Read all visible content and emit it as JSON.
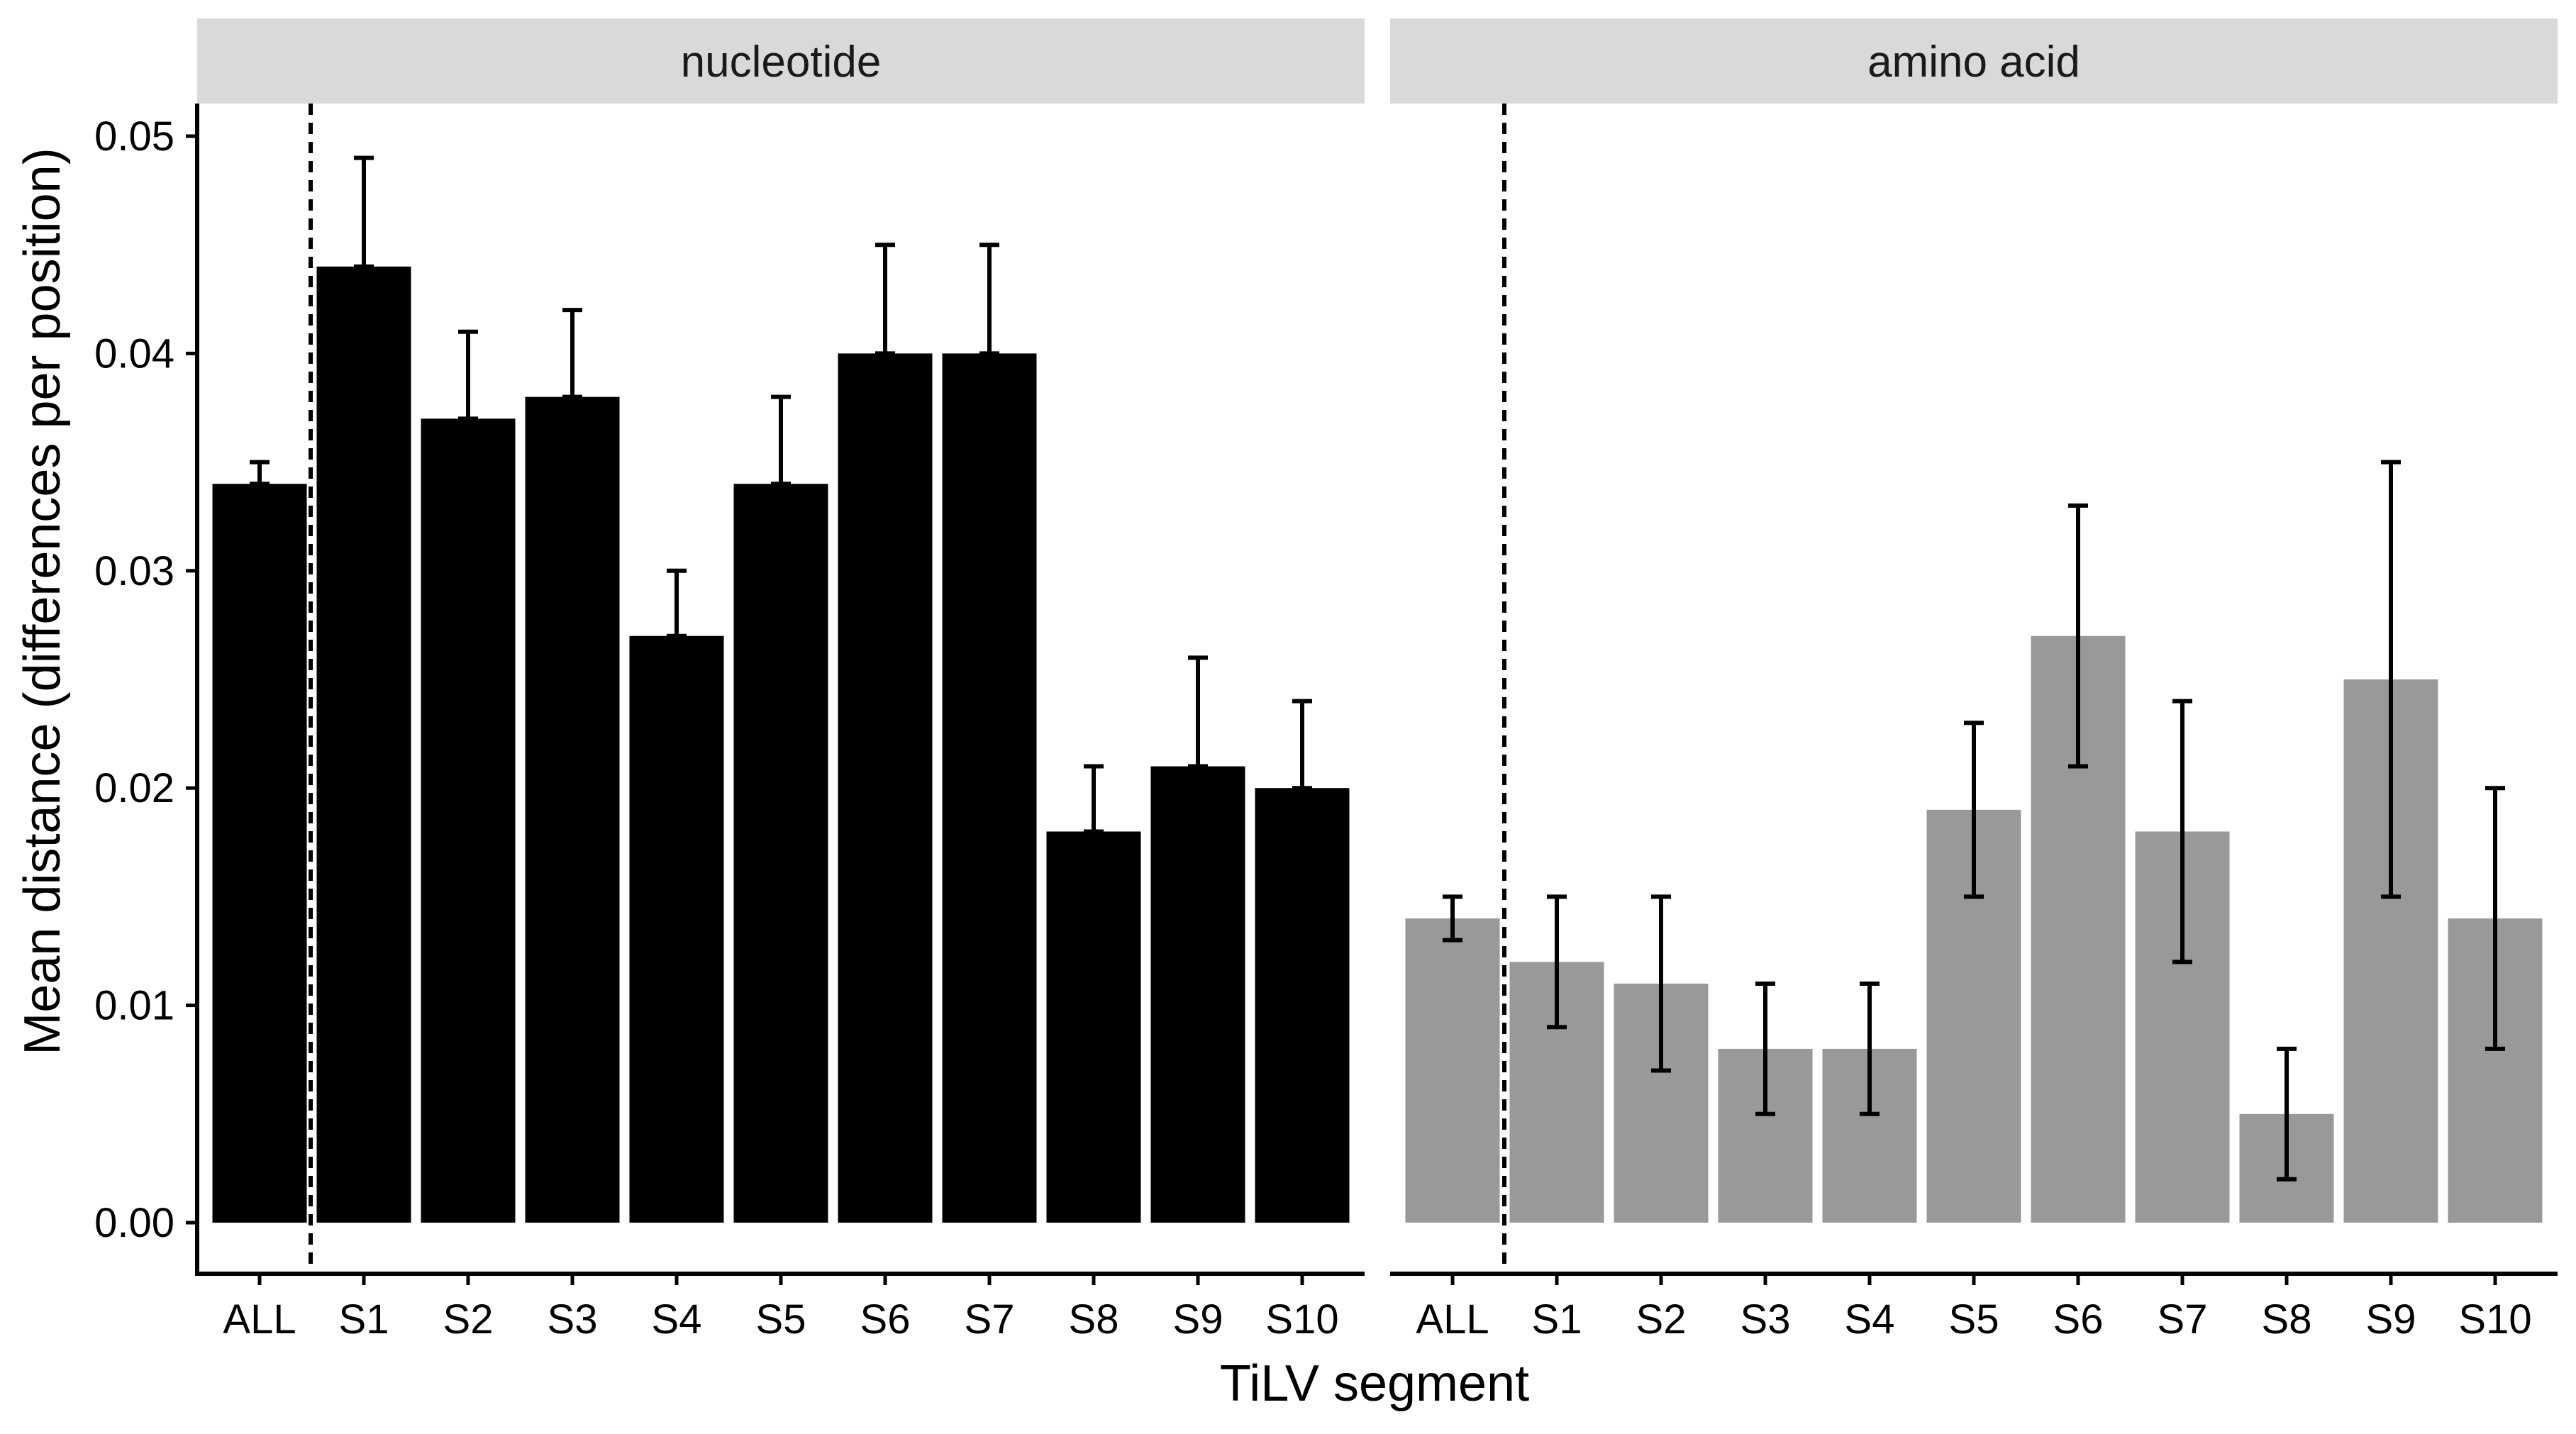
{
  "chart_data": {
    "type": "bar",
    "xlabel": "TiLV segment",
    "ylabel": "Mean distance (differences per position)",
    "ylim": [
      0,
      0.05
    ],
    "yticks": [
      "0.00",
      "0.01",
      "0.02",
      "0.03",
      "0.04",
      "0.05"
    ],
    "categories": [
      "ALL",
      "S1",
      "S2",
      "S3",
      "S4",
      "S5",
      "S6",
      "S7",
      "S8",
      "S9",
      "S10"
    ],
    "divider_after": "ALL",
    "panels": [
      {
        "name": "nucleotide",
        "color": "#000000",
        "values": [
          0.034,
          0.044,
          0.037,
          0.038,
          0.027,
          0.034,
          0.04,
          0.04,
          0.018,
          0.021,
          0.02
        ],
        "error_low": [
          0.034,
          0.044,
          0.037,
          0.038,
          0.027,
          0.034,
          0.04,
          0.04,
          0.018,
          0.021,
          0.02
        ],
        "error_high": [
          0.035,
          0.049,
          0.041,
          0.042,
          0.03,
          0.038,
          0.045,
          0.045,
          0.021,
          0.026,
          0.024
        ]
      },
      {
        "name": "amino acid",
        "color": "#999999",
        "values": [
          0.014,
          0.012,
          0.011,
          0.008,
          0.008,
          0.019,
          0.027,
          0.018,
          0.005,
          0.025,
          0.014
        ],
        "error_low": [
          0.013,
          0.009,
          0.007,
          0.005,
          0.005,
          0.015,
          0.021,
          0.012,
          0.002,
          0.015,
          0.008
        ],
        "error_high": [
          0.015,
          0.015,
          0.015,
          0.011,
          0.011,
          0.023,
          0.033,
          0.024,
          0.008,
          0.035,
          0.02
        ]
      }
    ]
  }
}
